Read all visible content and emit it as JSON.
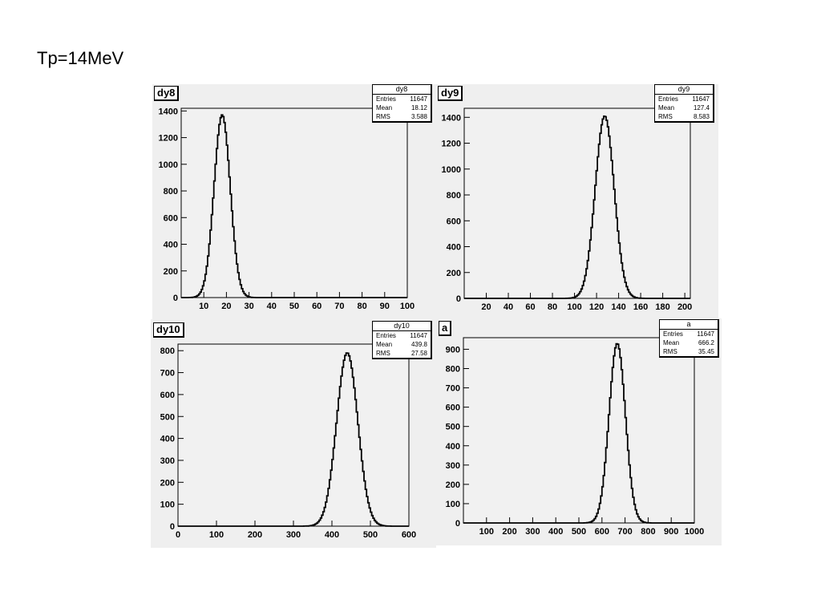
{
  "slide_title": "Tp=14MeV",
  "stats_labels": {
    "entries": "Entries",
    "mean": "Mean",
    "rms": "RMS"
  },
  "chart_data": [
    {
      "type": "bar",
      "name": "dy8",
      "stats": {
        "entries": "11647",
        "mean": "18.12",
        "rms": "3.588"
      },
      "xlim": [
        0,
        100
      ],
      "ylim": [
        0,
        1420
      ],
      "xticks": [
        10,
        20,
        30,
        40,
        50,
        60,
        70,
        80,
        90,
        100
      ],
      "yticks": [
        0,
        200,
        400,
        600,
        800,
        1000,
        1200,
        1400
      ],
      "peak": {
        "mean": 18.12,
        "sigma": 3.588,
        "height": 1370
      }
    },
    {
      "type": "bar",
      "name": "dy9",
      "stats": {
        "entries": "11647",
        "mean": "127.4",
        "rms": "8.583"
      },
      "xlim": [
        0,
        205
      ],
      "ylim": [
        0,
        1470
      ],
      "xticks": [
        20,
        40,
        60,
        80,
        100,
        120,
        140,
        160,
        180,
        200
      ],
      "yticks": [
        0,
        200,
        400,
        600,
        800,
        1000,
        1200,
        1400
      ],
      "peak": {
        "mean": 127.4,
        "sigma": 8.583,
        "height": 1410
      }
    },
    {
      "type": "bar",
      "name": "dy10",
      "stats": {
        "entries": "11647",
        "mean": "439.8",
        "rms": "27.58"
      },
      "xlim": [
        0,
        600
      ],
      "ylim": [
        0,
        830
      ],
      "xticks": [
        0,
        100,
        200,
        300,
        400,
        500,
        600
      ],
      "yticks": [
        0,
        100,
        200,
        300,
        400,
        500,
        600,
        700,
        800
      ],
      "peak": {
        "mean": 439.8,
        "sigma": 27.58,
        "height": 790
      }
    },
    {
      "type": "bar",
      "name": "a",
      "stats": {
        "entries": "11647",
        "mean": "666.2",
        "rms": "35.45"
      },
      "xlim": [
        0,
        1000
      ],
      "ylim": [
        0,
        960
      ],
      "xticks": [
        100,
        200,
        300,
        400,
        500,
        600,
        700,
        800,
        900,
        1000
      ],
      "yticks": [
        0,
        100,
        200,
        300,
        400,
        500,
        600,
        700,
        800,
        900
      ],
      "peak": {
        "mean": 666.2,
        "sigma": 35.45,
        "height": 930
      }
    }
  ]
}
